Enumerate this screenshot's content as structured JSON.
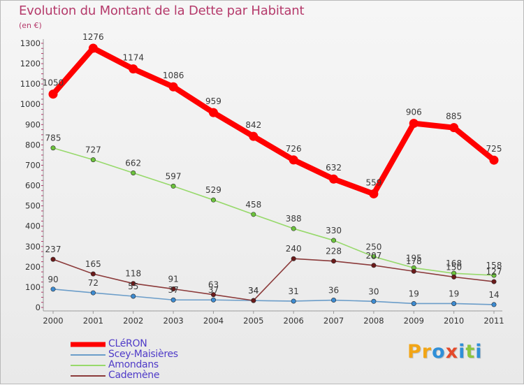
{
  "title": "Evolution du Montant de la Dette par Habitant",
  "subtitle": "(en €)",
  "brand": {
    "text": "Proxiti",
    "letters": [
      {
        "ch": "P",
        "color": "#f2a516"
      },
      {
        "ch": "r",
        "color": "#f2a516"
      },
      {
        "ch": "o",
        "color": "#2f8fd8"
      },
      {
        "ch": "x",
        "color": "#e44a2b"
      },
      {
        "ch": "i",
        "color": "#2f8fd8"
      },
      {
        "ch": "t",
        "color": "#8cc63f"
      },
      {
        "ch": "i",
        "color": "#2f8fd8"
      }
    ]
  },
  "chart_data": {
    "type": "line",
    "categories": [
      "2000",
      "2001",
      "2002",
      "2003",
      "2004",
      "2005",
      "2006",
      "2007",
      "2008",
      "2009",
      "2010",
      "2011"
    ],
    "ylim": [
      0,
      1300
    ],
    "yticks": [
      0,
      100,
      200,
      300,
      400,
      500,
      600,
      700,
      800,
      900,
      1000,
      1100,
      1200,
      1300
    ],
    "grid": false,
    "legend_position": "bottom-left",
    "series": [
      {
        "name": "CLéRON",
        "color": "#ff0000",
        "values": [
          1050,
          1276,
          1174,
          1086,
          959,
          842,
          726,
          632,
          559,
          906,
          885,
          725
        ]
      },
      {
        "name": "Scey-Maisières",
        "color": "#6b9dc9",
        "marker_color": "#3d8bd1",
        "values": [
          90,
          72,
          55,
          37,
          37,
          34,
          31,
          36,
          30,
          19,
          19,
          14
        ]
      },
      {
        "name": "Amondans",
        "color": "#97d96b",
        "marker_color": "#6cc33c",
        "values": [
          785,
          727,
          662,
          597,
          529,
          458,
          388,
          330,
          250,
          195,
          168,
          158
        ]
      },
      {
        "name": "Cademène",
        "color": "#8b3a3a",
        "marker_color": "#6b1a1a",
        "values": [
          237,
          165,
          118,
          91,
          63,
          34,
          240,
          228,
          207,
          178,
          150,
          127
        ]
      }
    ]
  }
}
